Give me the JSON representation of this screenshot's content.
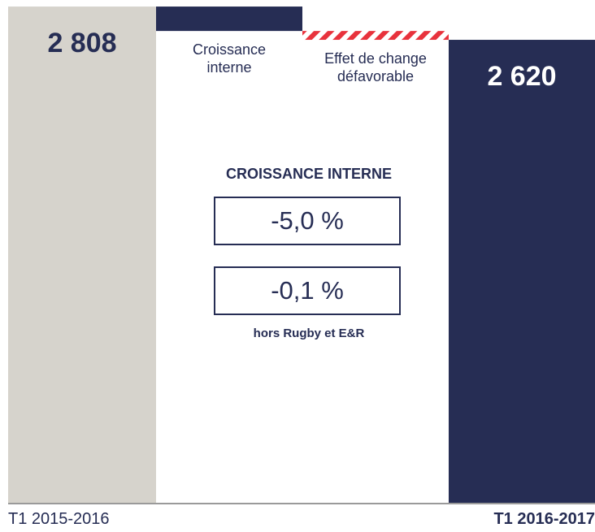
{
  "chart_data": {
    "type": "waterfall",
    "categories": [
      "T1 2015-2016",
      "Croissance interne",
      "Effet de change défavorable",
      "T1 2016-2017"
    ],
    "values": [
      2808,
      -138,
      -50,
      2620
    ],
    "value_labels": [
      "2 808",
      null,
      null,
      "2 620"
    ],
    "totals": [
      true,
      false,
      false,
      true
    ],
    "colors": [
      "#d6d3cc",
      "#262d54",
      "#e8323c",
      "#262d54"
    ],
    "hatch": [
      false,
      false,
      true,
      false
    ],
    "ylim": [
      0,
      2845
    ],
    "annotations": {
      "heading": "CROISSANCE INTERNE",
      "boxes": [
        "-5,0 %",
        "-0,1 %"
      ],
      "note": "hors Rugby et E&R"
    }
  }
}
